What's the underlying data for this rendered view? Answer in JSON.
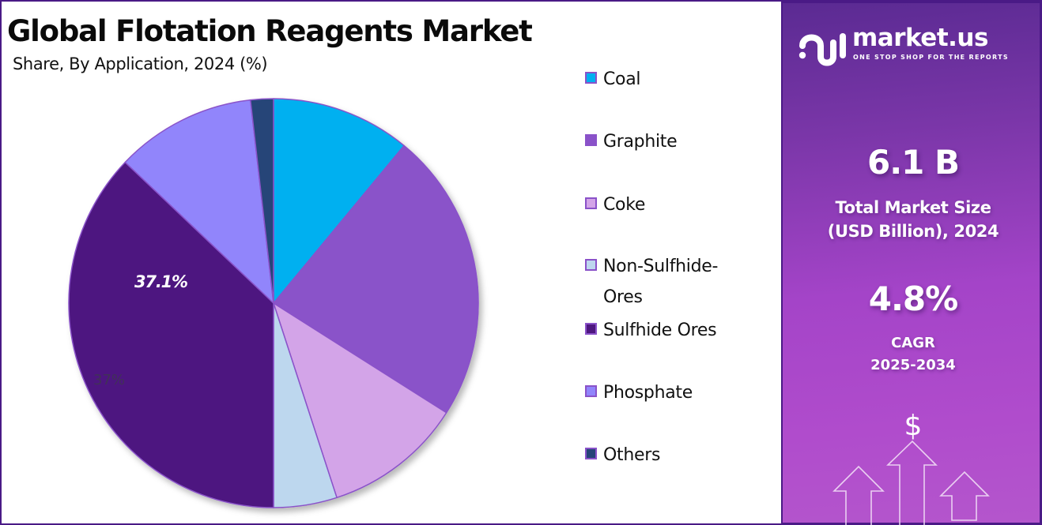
{
  "header": {
    "title": "Global Flotation Reagents Market",
    "subtitle": "Share, By Application, 2024 (%)"
  },
  "chart_data": {
    "type": "pie",
    "title": "Global Flotation Reagents Market",
    "subtitle": "Share, By Application, 2024 (%)",
    "categories": [
      "Coal",
      "Graphite",
      "Coke",
      "Non-Sulfhide-Ores",
      "Sulfhide Ores",
      "Phosphate",
      "Others"
    ],
    "values": [
      11.0,
      23.0,
      11.0,
      5.0,
      37.1,
      11.1,
      1.8
    ],
    "colors": [
      "#00b0f0",
      "#8a52c9",
      "#d3a4e8",
      "#bdd7ee",
      "#4e1780",
      "#9185fb",
      "#264478"
    ],
    "start_angle_deg": 0,
    "direction": "clockwise",
    "annotations": [
      {
        "label": "37.1%",
        "slice": "Sulfhide Ores",
        "style": "bold-italic-white"
      },
      {
        "label": "37%",
        "slice": "Sulfhide Ores",
        "style": "faded-gray"
      }
    ],
    "legend_position": "right"
  },
  "legend": {
    "items": [
      {
        "label": "Coal",
        "color": "#00b0f0"
      },
      {
        "label": "Graphite",
        "color": "#8a52c9"
      },
      {
        "label": "Coke",
        "color": "#d3a4e8"
      },
      {
        "label": "Non-Sulfhide-\nOres",
        "line1": "Non-Sulfhide-",
        "line2": "Ores",
        "color": "#bdd7ee"
      },
      {
        "label": "Sulfhide Ores",
        "color": "#4e1780"
      },
      {
        "label": "Phosphate",
        "color": "#9185fb"
      },
      {
        "label": "Others",
        "color": "#264478"
      }
    ]
  },
  "pie_labels": {
    "main": "37.1%",
    "ghost": "37%"
  },
  "panel": {
    "brand": "market.us",
    "tagline": "ONE STOP SHOP FOR THE REPORTS",
    "market_size_value": "6.1 B",
    "market_size_label_line1": "Total Market Size",
    "market_size_label_line2": "(USD Billion), 2024",
    "cagr_value": "4.8%",
    "cagr_label_line1": "CAGR",
    "cagr_label_line2": "2025-2034",
    "currency_symbol": "$"
  },
  "colors": {
    "frame_border": "#4a1a86",
    "panel_top": "#5a2a92",
    "panel_bottom": "#b456cc",
    "slice_stroke": "#8a52c9"
  }
}
